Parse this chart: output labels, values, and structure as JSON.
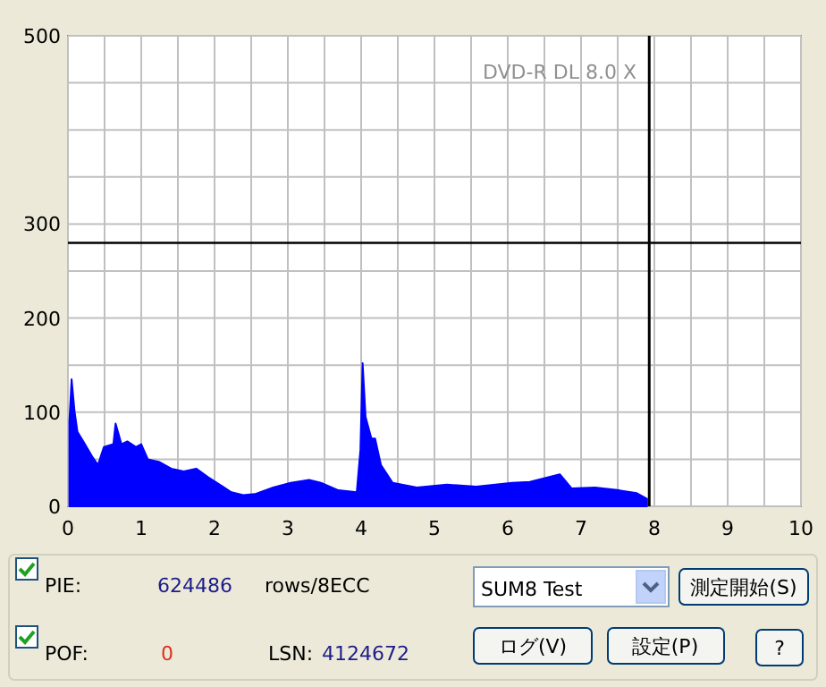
{
  "chart_data": {
    "type": "area",
    "title": "DVD-R DL   8.0 X",
    "x": [
      0.02,
      0.05,
      0.09,
      0.13,
      0.21,
      0.33,
      0.41,
      0.49,
      0.62,
      0.65,
      0.73,
      0.81,
      0.93,
      1.0,
      1.09,
      1.25,
      1.41,
      1.58,
      1.75,
      1.91,
      2.11,
      2.23,
      2.39,
      2.55,
      2.8,
      3.04,
      3.29,
      3.45,
      3.69,
      3.94,
      3.99,
      4.02,
      4.06,
      4.14,
      4.19,
      4.27,
      4.43,
      4.76,
      5.17,
      5.57,
      6.06,
      6.3,
      6.71,
      6.87,
      7.19,
      7.52,
      7.76,
      7.9
    ],
    "series": [
      {
        "color": "#0000ff",
        "values": [
          90,
          135,
          101,
          79,
          69,
          53,
          44,
          63,
          66,
          88,
          66,
          69,
          63,
          66,
          50,
          47,
          40,
          37,
          40,
          31,
          21,
          15,
          12,
          13,
          20,
          25,
          28,
          25,
          17,
          15,
          60,
          152,
          95,
          72,
          72,
          44,
          25,
          20,
          23,
          21,
          25,
          26,
          34,
          19,
          20,
          17,
          14,
          8
        ]
      }
    ],
    "xlim": [
      0,
      10
    ],
    "ylim": [
      0,
      500
    ],
    "xticks": [
      0,
      {
        "value": 0.5,
        "label": null
      },
      1,
      {
        "value": 1.5,
        "label": null
      },
      2,
      {
        "value": 2.5,
        "label": null
      },
      3,
      {
        "value": 3.5,
        "label": null
      },
      4,
      {
        "value": 4.5,
        "label": null
      },
      5,
      {
        "value": 5.5,
        "label": null
      },
      6,
      {
        "value": 6.5,
        "label": null
      },
      7,
      {
        "value": 7.5,
        "label": null
      },
      8,
      {
        "value": 8.5,
        "label": null
      },
      9,
      {
        "value": 9.5,
        "label": null
      },
      10
    ],
    "yticks": [
      0,
      {
        "value": 50,
        "label": null
      },
      100,
      {
        "value": 150,
        "label": null
      },
      200,
      {
        "value": 250,
        "label": null
      },
      300,
      {
        "value": 350,
        "label": null
      },
      {
        "value": 400,
        "label": null
      },
      {
        "value": 450,
        "label": null
      },
      500
    ],
    "grid": true,
    "ref_lines": [
      {
        "axis": "y",
        "value": 280,
        "color": "#000000"
      },
      {
        "axis": "x",
        "value": 7.93,
        "color": "#000000"
      }
    ],
    "annotations": [
      "PIE:",
      "624486",
      "rows/8ECC",
      "POF:",
      "0",
      "LSN:",
      "4124672",
      "SUM8 Test",
      "測定開始(S)",
      "ログ(V)",
      "設定(P)",
      "?"
    ]
  }
}
